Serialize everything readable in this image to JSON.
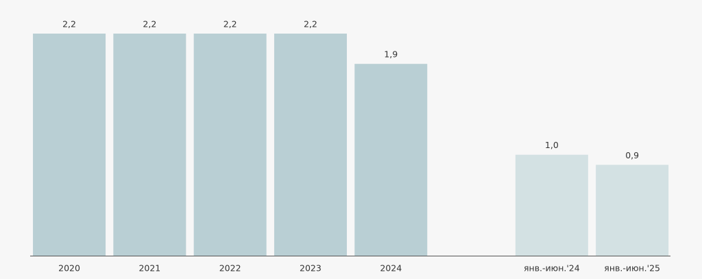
{
  "chart_data": {
    "type": "bar",
    "categories": [
      "2020",
      "2021",
      "2022",
      "2023",
      "2024",
      null,
      "янв.-июн.'24",
      "янв.-июн.'25"
    ],
    "values": [
      2.2,
      2.2,
      2.2,
      2.2,
      1.9,
      null,
      1.0,
      0.9
    ],
    "value_labels": [
      "2,2",
      "2,2",
      "2,2",
      "2,2",
      "1,9",
      null,
      "1,0",
      "0,9"
    ],
    "colors": [
      "#b9cfd4",
      "#b9cfd4",
      "#b9cfd4",
      "#b9cfd4",
      "#b9cfd4",
      null,
      "#d3e1e3",
      "#d3e1e3"
    ]
  }
}
